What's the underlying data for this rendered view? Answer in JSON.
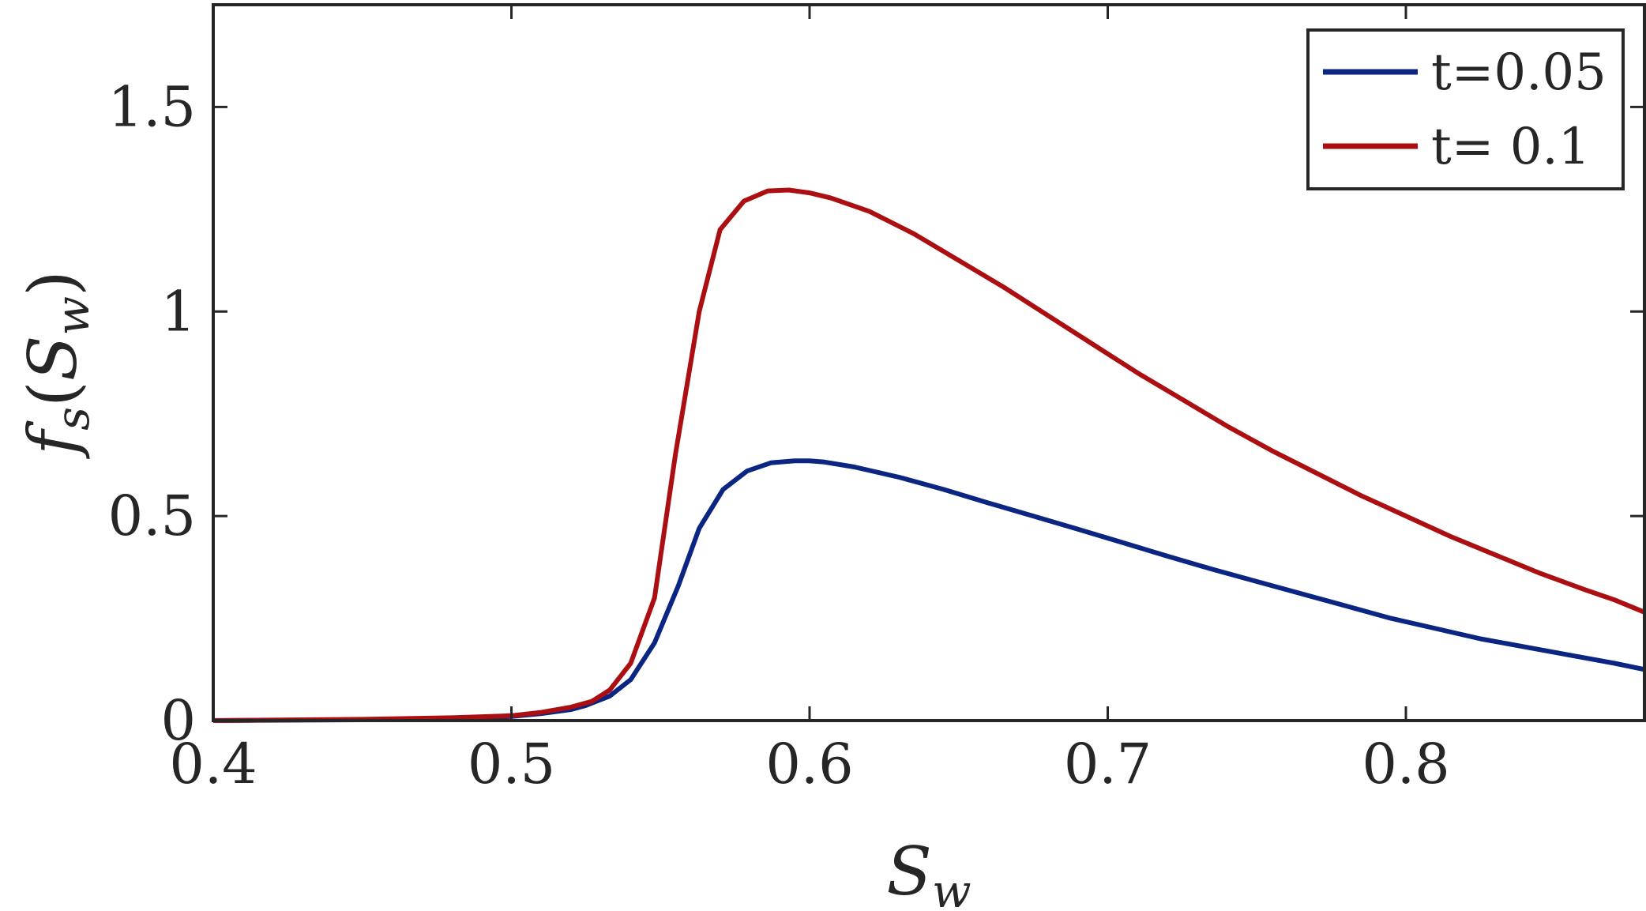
{
  "chart_data": {
    "type": "line",
    "title": "",
    "xlabel": {
      "main": "S",
      "sub": "w"
    },
    "ylabel": {
      "f": "f",
      "f_sub": "s",
      "open": "(",
      "S": "S",
      "S_sub": "w",
      "close": ")"
    },
    "xlim": [
      0.4,
      0.88
    ],
    "ylim": [
      0,
      1.75
    ],
    "xticks": [
      0.4,
      0.5,
      0.6,
      0.7,
      0.8
    ],
    "xtick_labels": [
      "0.4",
      "0.5",
      "0.6",
      "0.7",
      "0.8"
    ],
    "yticks": [
      0,
      0.5,
      1,
      1.5
    ],
    "ytick_labels": [
      "0",
      "0.5",
      "1",
      "1.5"
    ],
    "grid": false,
    "legend_position": "top-right",
    "series": [
      {
        "name": "t=0.05",
        "color": "#0b2582",
        "x": [
          0.4,
          0.45,
          0.48,
          0.5,
          0.51,
          0.52,
          0.525,
          0.533,
          0.54,
          0.548,
          0.556,
          0.563,
          0.571,
          0.579,
          0.587,
          0.595,
          0.6,
          0.605,
          0.615,
          0.63,
          0.645,
          0.66,
          0.675,
          0.69,
          0.705,
          0.72,
          0.735,
          0.75,
          0.765,
          0.78,
          0.795,
          0.81,
          0.825,
          0.84,
          0.855,
          0.87,
          0.88
        ],
        "y": [
          0.0,
          0.002,
          0.005,
          0.01,
          0.017,
          0.027,
          0.037,
          0.06,
          0.1,
          0.19,
          0.33,
          0.47,
          0.565,
          0.61,
          0.63,
          0.635,
          0.635,
          0.632,
          0.62,
          0.595,
          0.565,
          0.532,
          0.5,
          0.468,
          0.435,
          0.402,
          0.37,
          0.34,
          0.31,
          0.28,
          0.25,
          0.225,
          0.2,
          0.18,
          0.16,
          0.14,
          0.125
        ]
      },
      {
        "name": "t= 0.1",
        "color": "#ac0f12",
        "x": [
          0.4,
          0.45,
          0.48,
          0.5,
          0.51,
          0.52,
          0.527,
          0.533,
          0.54,
          0.548,
          0.555,
          0.563,
          0.57,
          0.578,
          0.586,
          0.593,
          0.6,
          0.607,
          0.62,
          0.635,
          0.65,
          0.665,
          0.68,
          0.695,
          0.71,
          0.725,
          0.74,
          0.755,
          0.77,
          0.785,
          0.8,
          0.815,
          0.83,
          0.845,
          0.86,
          0.87,
          0.88
        ],
        "y": [
          0.0,
          0.003,
          0.007,
          0.012,
          0.02,
          0.033,
          0.047,
          0.075,
          0.14,
          0.3,
          0.65,
          1.0,
          1.2,
          1.27,
          1.295,
          1.297,
          1.29,
          1.278,
          1.245,
          1.19,
          1.125,
          1.06,
          0.99,
          0.92,
          0.85,
          0.785,
          0.72,
          0.66,
          0.605,
          0.55,
          0.5,
          0.45,
          0.405,
          0.36,
          0.32,
          0.295,
          0.265
        ]
      }
    ]
  }
}
